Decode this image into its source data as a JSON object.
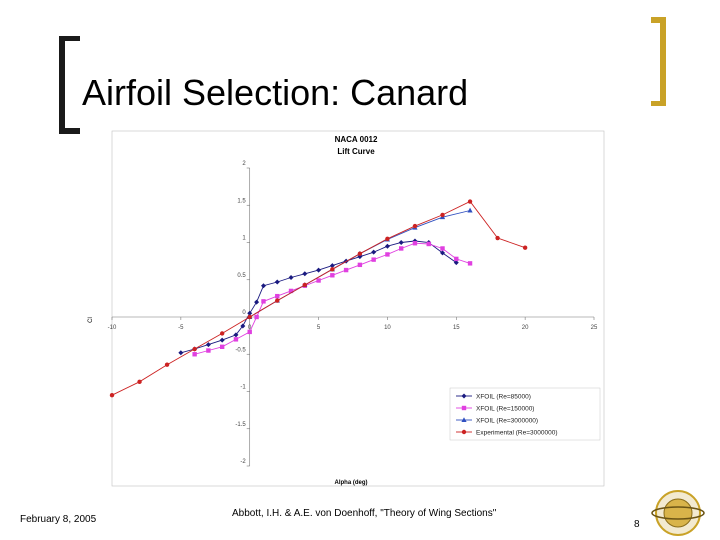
{
  "slide": {
    "title": "Airfoil Selection: Canard",
    "date": "February 8, 2005",
    "citation": "Abbott, I.H. & A.E. von Doenhoff, \"Theory of Wing Sections\"",
    "page_number": "8",
    "accent_color": "#c9a227"
  },
  "chart_data": {
    "type": "line",
    "title": "NACA 0012",
    "subtitle": "Lift Curve",
    "xlabel": "Alpha (deg)",
    "ylabel": "Cl",
    "xlim": [
      -10,
      25
    ],
    "ylim": [
      -2,
      2
    ],
    "x_ticks": [
      "-10",
      "-5",
      "0",
      "5",
      "10",
      "15",
      "20",
      "25"
    ],
    "y_ticks": [
      "2",
      "1.5",
      "1",
      "0.5",
      "0",
      "-0.5",
      "-1",
      "-1.5",
      "-2"
    ],
    "legend_position": "bottom-right",
    "grid": false,
    "series": [
      {
        "name": "XFOIL (Re=85000)",
        "color": "#1a1a80",
        "marker": "diamond",
        "points": [
          [
            -5,
            -0.48
          ],
          [
            -4,
            -0.43
          ],
          [
            -3,
            -0.37
          ],
          [
            -2,
            -0.31
          ],
          [
            -1,
            -0.24
          ],
          [
            -0.5,
            -0.12
          ],
          [
            0,
            0.05
          ],
          [
            0.5,
            0.2
          ],
          [
            1,
            0.42
          ],
          [
            2,
            0.47
          ],
          [
            3,
            0.53
          ],
          [
            4,
            0.58
          ],
          [
            5,
            0.63
          ],
          [
            6,
            0.69
          ],
          [
            7,
            0.75
          ],
          [
            8,
            0.81
          ],
          [
            9,
            0.87
          ],
          [
            10,
            0.95
          ],
          [
            11,
            1.0
          ],
          [
            12,
            1.02
          ],
          [
            13,
            1.0
          ],
          [
            14,
            0.86
          ],
          [
            15,
            0.73
          ]
        ]
      },
      {
        "name": "XFOIL (Re=150000)",
        "color": "#e040e0",
        "marker": "square",
        "points": [
          [
            -4,
            -0.5
          ],
          [
            -3,
            -0.45
          ],
          [
            -2,
            -0.4
          ],
          [
            -1,
            -0.3
          ],
          [
            0,
            -0.2
          ],
          [
            0.5,
            0.0
          ],
          [
            1,
            0.21
          ],
          [
            2,
            0.28
          ],
          [
            3,
            0.35
          ],
          [
            4,
            0.42
          ],
          [
            5,
            0.49
          ],
          [
            6,
            0.56
          ],
          [
            7,
            0.63
          ],
          [
            8,
            0.7
          ],
          [
            9,
            0.77
          ],
          [
            10,
            0.84
          ],
          [
            11,
            0.92
          ],
          [
            12,
            0.99
          ],
          [
            13,
            0.98
          ],
          [
            14,
            0.92
          ],
          [
            15,
            0.78
          ],
          [
            16,
            0.72
          ]
        ]
      },
      {
        "name": "XFOIL (Re=3000000)",
        "color": "#3050c0",
        "marker": "triangle",
        "points": [
          [
            0,
            0.0
          ],
          [
            2,
            0.22
          ],
          [
            4,
            0.43
          ],
          [
            6,
            0.64
          ],
          [
            8,
            0.85
          ],
          [
            10,
            1.04
          ],
          [
            12,
            1.2
          ],
          [
            14,
            1.34
          ],
          [
            16,
            1.43
          ]
        ]
      },
      {
        "name": "Experimental (Re=3000000)",
        "color": "#cc2222",
        "marker": "circle",
        "points": [
          [
            -10,
            -1.05
          ],
          [
            -8,
            -0.87
          ],
          [
            -6,
            -0.64
          ],
          [
            -4,
            -0.43
          ],
          [
            -2,
            -0.22
          ],
          [
            0,
            0.0
          ],
          [
            2,
            0.22
          ],
          [
            4,
            0.43
          ],
          [
            6,
            0.64
          ],
          [
            8,
            0.85
          ],
          [
            10,
            1.05
          ],
          [
            12,
            1.22
          ],
          [
            14,
            1.37
          ],
          [
            16,
            1.55
          ],
          [
            18,
            1.06
          ],
          [
            20,
            0.93
          ]
        ]
      }
    ]
  }
}
